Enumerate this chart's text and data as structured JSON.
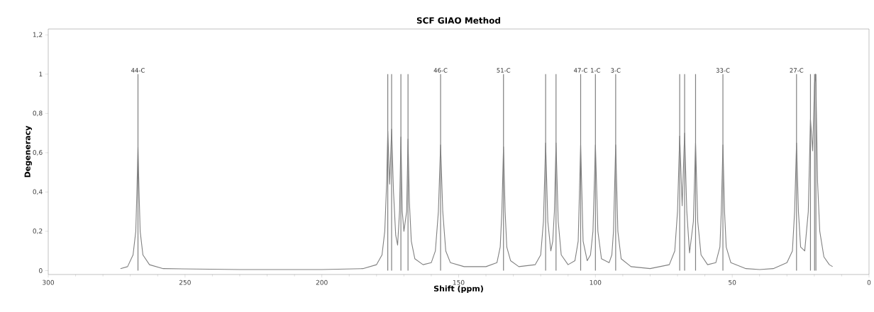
{
  "chart_data": {
    "type": "line",
    "title": "SCF GIAO Method",
    "xlabel": "Shift (ppm)",
    "ylabel": "Degeneracy",
    "xlim": [
      300,
      0
    ],
    "xticks": [
      300,
      250,
      200,
      150,
      100,
      50,
      0
    ],
    "ylim": [
      -0.02,
      1.23
    ],
    "yticks": [
      0,
      {
        "value": 0.2,
        "label": "0,2"
      },
      {
        "value": 0.4,
        "label": "0,4"
      },
      {
        "value": 0.6,
        "label": "0,6"
      },
      {
        "value": 0.8,
        "label": "0,8"
      },
      1,
      {
        "value": 1.2,
        "label": "1,2"
      }
    ],
    "marker": "none",
    "line_style": "solid",
    "series": [
      {
        "color": "#808080",
        "x": [
          273.6,
          271,
          269,
          268,
          267.6,
          267.2,
          266.8,
          266.4,
          265.4,
          263,
          258,
          230,
          200,
          185,
          180,
          178,
          177,
          176.3,
          175.9,
          175.2,
          174.5,
          173.8,
          173,
          172.3,
          171.6,
          171.1,
          170.6,
          170,
          169,
          168.5,
          168,
          167.3,
          166,
          163,
          160,
          158.5,
          157.4,
          156.6,
          155.8,
          154.7,
          153,
          148,
          140,
          136,
          134.8,
          134.2,
          133.6,
          133,
          132.4,
          131,
          128,
          122,
          120,
          119,
          118.2,
          117.4,
          116.3,
          115.6,
          115,
          114.4,
          113.6,
          112.5,
          110,
          107.5,
          106.3,
          105.4,
          104.5,
          103,
          101.8,
          100.9,
          100,
          99.1,
          97.8,
          95,
          94,
          93.4,
          92.6,
          91.8,
          90.6,
          87,
          80,
          73,
          71,
          70,
          69.2,
          68.3,
          67.4,
          66.6,
          65.6,
          64.2,
          63.4,
          62.6,
          61.4,
          59,
          56,
          54.5,
          54,
          53.4,
          52.8,
          52.2,
          50.5,
          45,
          40,
          35,
          30,
          28,
          27.2,
          26.5,
          25.8,
          25,
          23.5,
          22.2,
          21.4,
          20.6,
          19.9,
          19.6,
          19.4,
          18.8,
          18,
          16.5,
          14.5,
          13.3
        ],
        "values": [
          0.01,
          0.02,
          0.08,
          0.2,
          0.4,
          0.63,
          0.4,
          0.2,
          0.08,
          0.03,
          0.01,
          0.005,
          0.005,
          0.01,
          0.03,
          0.08,
          0.2,
          0.45,
          0.71,
          0.44,
          0.72,
          0.4,
          0.18,
          0.13,
          0.3,
          0.68,
          0.3,
          0.2,
          0.3,
          0.67,
          0.35,
          0.15,
          0.06,
          0.03,
          0.04,
          0.1,
          0.3,
          0.64,
          0.3,
          0.1,
          0.04,
          0.02,
          0.02,
          0.04,
          0.12,
          0.3,
          0.63,
          0.3,
          0.12,
          0.05,
          0.02,
          0.03,
          0.08,
          0.25,
          0.65,
          0.25,
          0.1,
          0.15,
          0.3,
          0.65,
          0.25,
          0.08,
          0.03,
          0.05,
          0.15,
          0.64,
          0.15,
          0.05,
          0.08,
          0.2,
          0.64,
          0.2,
          0.06,
          0.04,
          0.08,
          0.2,
          0.64,
          0.2,
          0.06,
          0.02,
          0.01,
          0.03,
          0.1,
          0.3,
          0.685,
          0.33,
          0.7,
          0.3,
          0.09,
          0.25,
          0.65,
          0.25,
          0.08,
          0.03,
          0.04,
          0.12,
          0.3,
          0.64,
          0.3,
          0.12,
          0.04,
          0.01,
          0.005,
          0.01,
          0.04,
          0.1,
          0.3,
          0.65,
          0.3,
          0.12,
          0.1,
          0.3,
          0.77,
          0.61,
          0.95,
          1.0,
          0.95,
          0.45,
          0.2,
          0.07,
          0.03,
          0.02
        ]
      },
      {
        "type": "bar",
        "color": "#808080",
        "x": [
          267.2,
          175.9,
          174.5,
          171.1,
          168.5,
          156.6,
          133.6,
          118.2,
          114.4,
          105.4,
          100,
          92.6,
          69.2,
          67.4,
          63.4,
          53.4,
          26.5,
          21.4,
          19.9,
          19.4
        ],
        "values": [
          1,
          1,
          1,
          1,
          1,
          1,
          1,
          1,
          1,
          1,
          1,
          1,
          1,
          1,
          1,
          1,
          1,
          1,
          1,
          1
        ]
      }
    ],
    "annotations": [
      {
        "text": "44-C",
        "x": 267.2,
        "y": 1
      },
      {
        "text": "46-C",
        "x": 156.6,
        "y": 1
      },
      {
        "text": "51-C",
        "x": 133.6,
        "y": 1
      },
      {
        "text": "47-C",
        "x": 105.4,
        "y": 1
      },
      {
        "text": "1-C",
        "x": 100,
        "y": 1
      },
      {
        "text": "3-C",
        "x": 92.6,
        "y": 1
      },
      {
        "text": "33-C",
        "x": 53.4,
        "y": 1
      },
      {
        "text": "27-C",
        "x": 26.5,
        "y": 1
      }
    ]
  }
}
